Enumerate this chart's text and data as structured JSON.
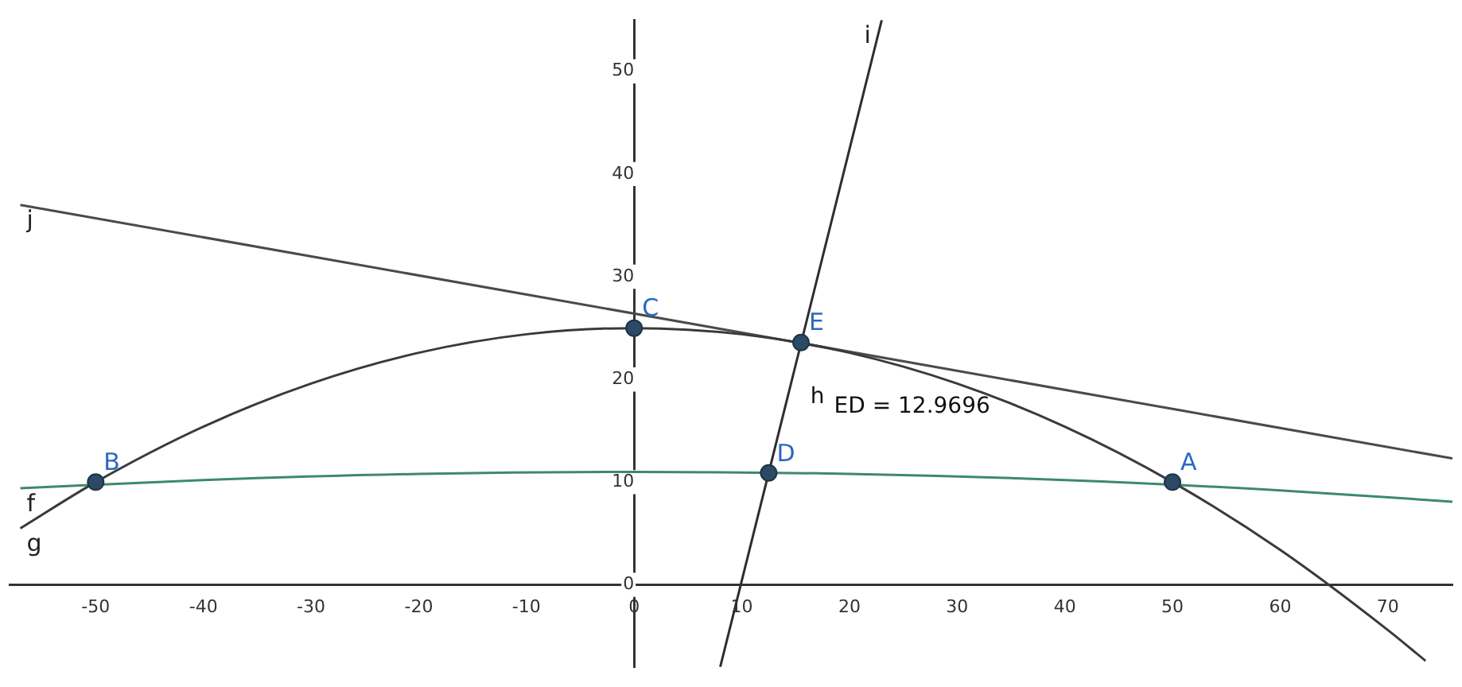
{
  "chart_data": {
    "type": "line",
    "xlim": [
      -58,
      76
    ],
    "ylim": [
      -8,
      55
    ],
    "xticks": [
      -50,
      -40,
      -30,
      -20,
      -10,
      0,
      10,
      20,
      30,
      40,
      50,
      60,
      70
    ],
    "yticks": [
      0,
      10,
      20,
      30,
      40,
      50
    ],
    "grid": false,
    "legend": false,
    "marker": "none",
    "line_style": "solid",
    "series": [
      {
        "name": "g",
        "color": "#3a3a3a",
        "x": [
          -57,
          -50,
          -40,
          -30,
          -20,
          -10,
          0,
          10,
          20,
          30,
          40,
          50,
          60,
          70,
          73.5
        ],
        "values": [
          5.5,
          10,
          15.4,
          19.6,
          22.6,
          24.4,
          25,
          24.4,
          22.6,
          19.6,
          15.4,
          10,
          3.4,
          -4.4,
          -7.4
        ]
      },
      {
        "name": "f",
        "color": "#3d8a6a",
        "x": [
          -57,
          -40,
          -20,
          0,
          20,
          40,
          60,
          76
        ],
        "values": [
          9.4,
          10.2,
          10.8,
          11,
          10.8,
          10.2,
          9.2,
          8.1
        ]
      },
      {
        "name": "j",
        "color": "#4a4a4a",
        "x": [
          -57,
          76
        ],
        "values": [
          37.0,
          12.3
        ]
      },
      {
        "name": "i",
        "color": "#2e2e2e",
        "x": [
          23.0,
          8.0
        ],
        "values": [
          55,
          -8
        ]
      },
      {
        "type": "scatter",
        "marker": "circle",
        "color": "#2c4a66",
        "x": [
          50,
          -50,
          0,
          12.5,
          15.5
        ],
        "values": [
          10,
          10,
          25,
          10.9,
          23.6
        ]
      }
    ],
    "annotations": [
      {
        "text": "A",
        "x": 50,
        "y": 10
      },
      {
        "text": "B",
        "x": -50,
        "y": 10
      },
      {
        "text": "C",
        "x": 0,
        "y": 25
      },
      {
        "text": "D",
        "x": 12.5,
        "y": 10.9
      },
      {
        "text": "E",
        "x": 15.5,
        "y": 23.6
      },
      "h",
      "ED = 12.9696"
    ]
  }
}
